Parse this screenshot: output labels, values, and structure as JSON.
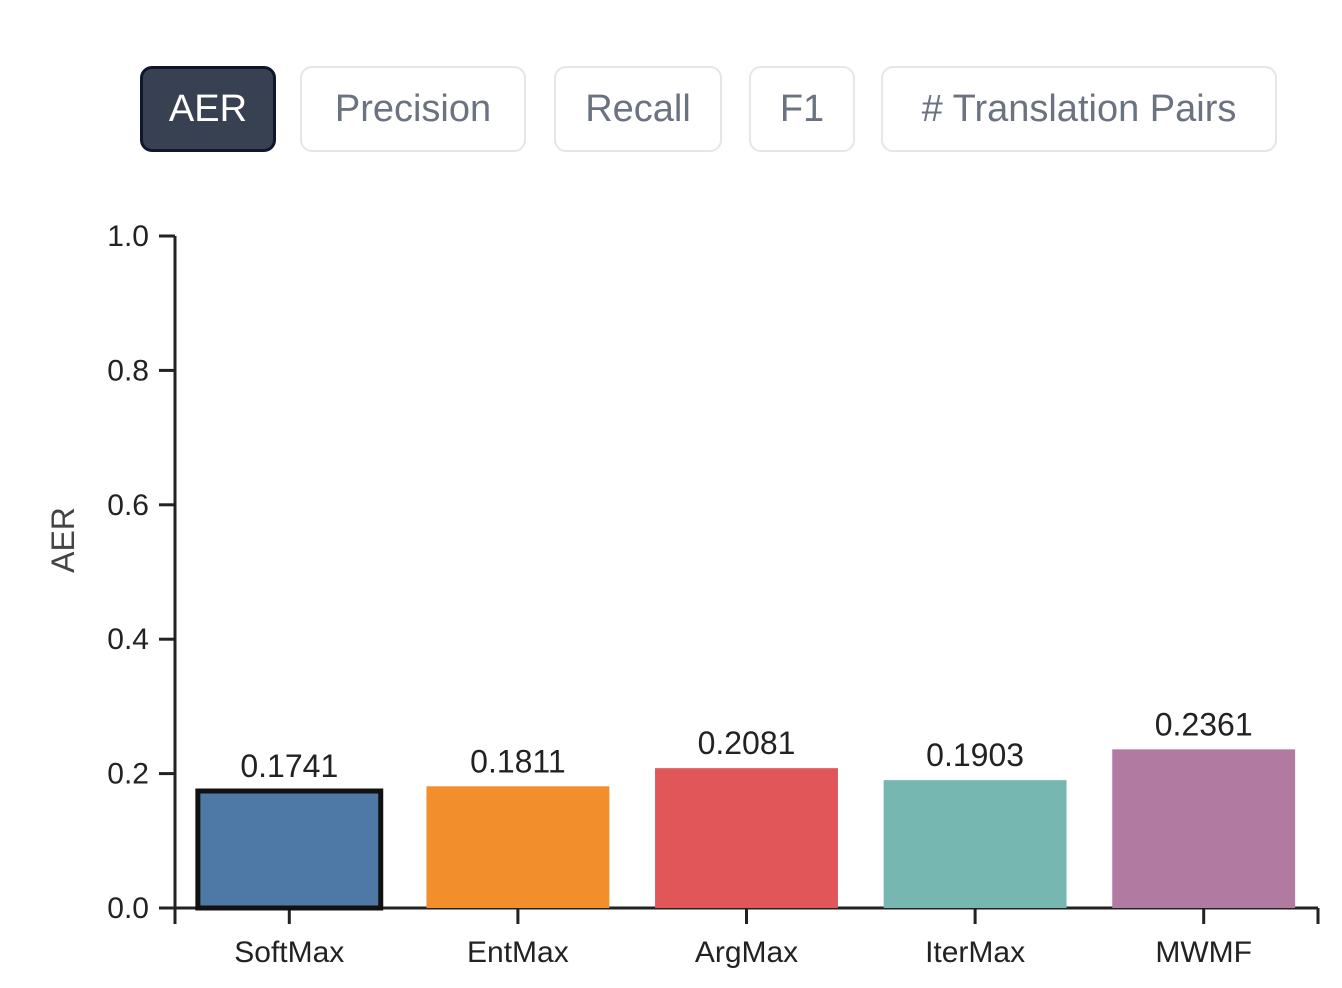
{
  "tabs": [
    {
      "label": "AER",
      "active": true
    },
    {
      "label": "Precision",
      "active": false
    },
    {
      "label": "Recall",
      "active": false
    },
    {
      "label": "F1",
      "active": false
    },
    {
      "label": "# Translation Pairs",
      "active": false
    }
  ],
  "chart_data": {
    "type": "bar",
    "ylabel": "AER",
    "xlabel": "",
    "ylim": [
      0,
      1.0
    ],
    "yticks": [
      "0.0",
      "0.2",
      "0.4",
      "0.6",
      "0.8",
      "1.0"
    ],
    "categories": [
      "SoftMax",
      "EntMax",
      "ArgMax",
      "IterMax",
      "MWMF"
    ],
    "values": [
      0.1741,
      0.1811,
      0.2081,
      0.1903,
      0.2361
    ],
    "value_labels": [
      "0.1741",
      "0.1811",
      "0.2081",
      "0.1903",
      "0.2361"
    ],
    "colors": [
      "#4e79a7",
      "#f28e2b",
      "#e15759",
      "#76b7b2",
      "#b07aa1"
    ],
    "highlighted": "SoftMax",
    "grid": false,
    "legend": "none"
  }
}
